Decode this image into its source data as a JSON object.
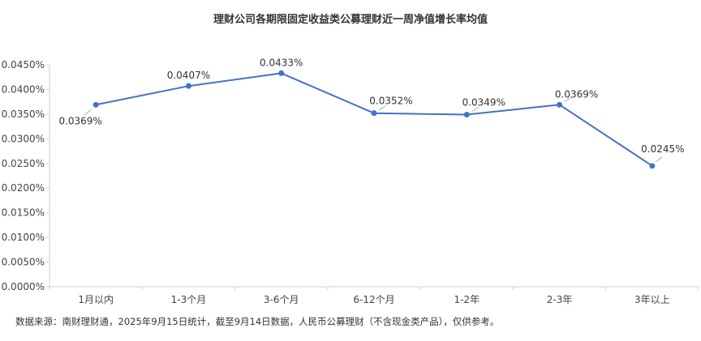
{
  "chart_data": {
    "type": "line",
    "title": "理财公司各期限固定收益类公募理财近一周净值增长率均值",
    "categories": [
      "1月以内",
      "1-3个月",
      "3-6个月",
      "6-12个月",
      "1-2年",
      "2-3年",
      "3年以上"
    ],
    "values": [
      0.0369,
      0.0407,
      0.0433,
      0.0352,
      0.0349,
      0.0369,
      0.0245
    ],
    "data_labels": [
      "0.0369%",
      "0.0407%",
      "0.0433%",
      "0.0352%",
      "0.0349%",
      "0.0369%",
      "0.0245%"
    ],
    "y_ticks": [
      "0.0000%",
      "0.0050%",
      "0.0100%",
      "0.0150%",
      "0.0200%",
      "0.0250%",
      "0.0300%",
      "0.0350%",
      "0.0400%",
      "0.0450%"
    ],
    "ylim": [
      0,
      0.045
    ],
    "grid": false,
    "legend": "none",
    "line_color": "#4472C4"
  },
  "footer": {
    "source": "数据来源：南财理财通，2025年9月15日统计，截至9月14日数据，人民币公募理财（不含现金类产品），仅供参考。"
  }
}
